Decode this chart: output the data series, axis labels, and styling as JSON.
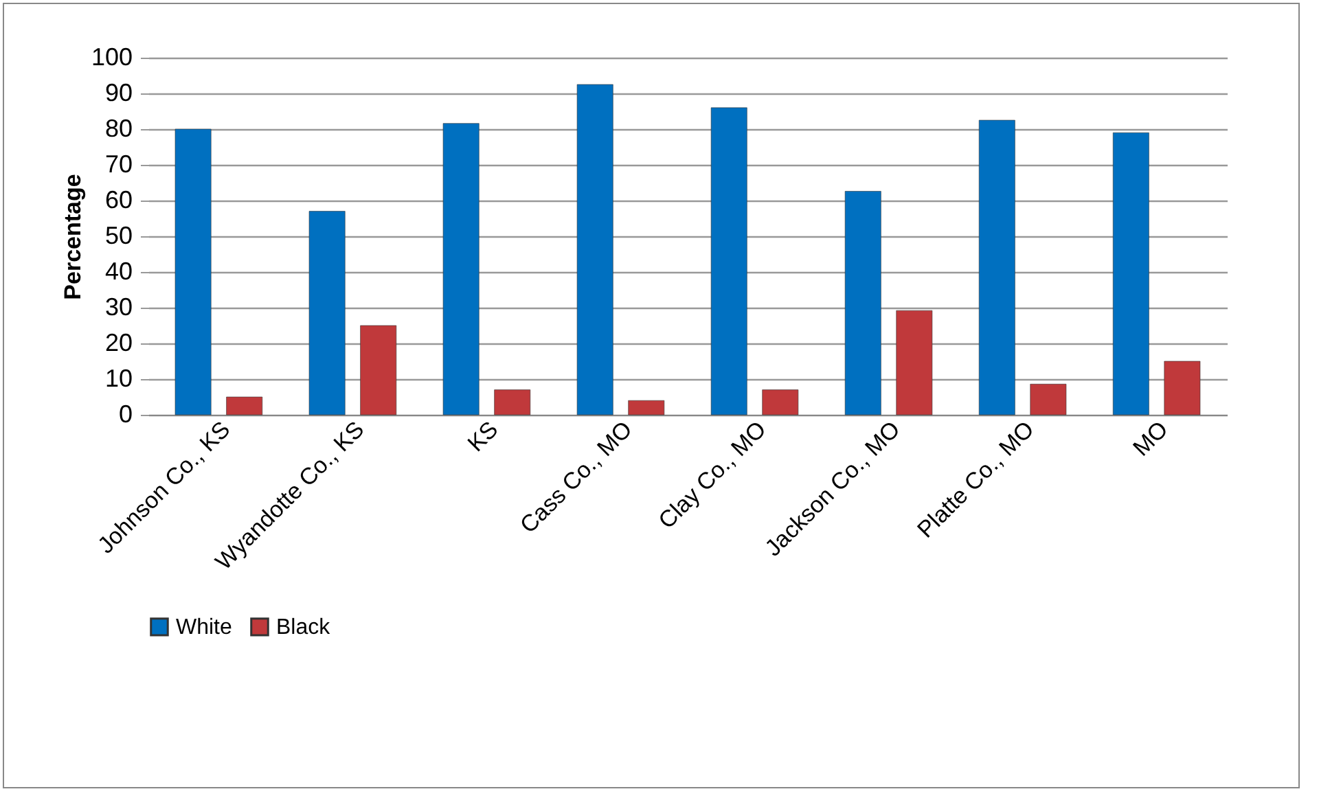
{
  "chart_data": {
    "type": "bar",
    "ylabel": "Percentage",
    "categories": [
      "Johnson Co.,  KS",
      "Wyandotte Co., KS",
      "KS",
      "Cass Co., MO",
      "Clay Co., MO",
      "Jackson Co., MO",
      "Platte Co., MO",
      "MO"
    ],
    "series": [
      {
        "name": "White",
        "color": "#0070c0",
        "values": [
          80,
          57,
          81.6,
          92.5,
          86,
          62.6,
          82.5,
          79
        ]
      },
      {
        "name": "Black",
        "color": "#c0393b",
        "values": [
          5,
          25,
          7,
          4,
          7,
          29.2,
          8.6,
          15
        ]
      }
    ],
    "ylim": [
      0,
      100
    ],
    "yticks": [
      0,
      10,
      20,
      30,
      40,
      50,
      60,
      70,
      80,
      90,
      100
    ],
    "grid": "y",
    "legend": "bottom"
  }
}
